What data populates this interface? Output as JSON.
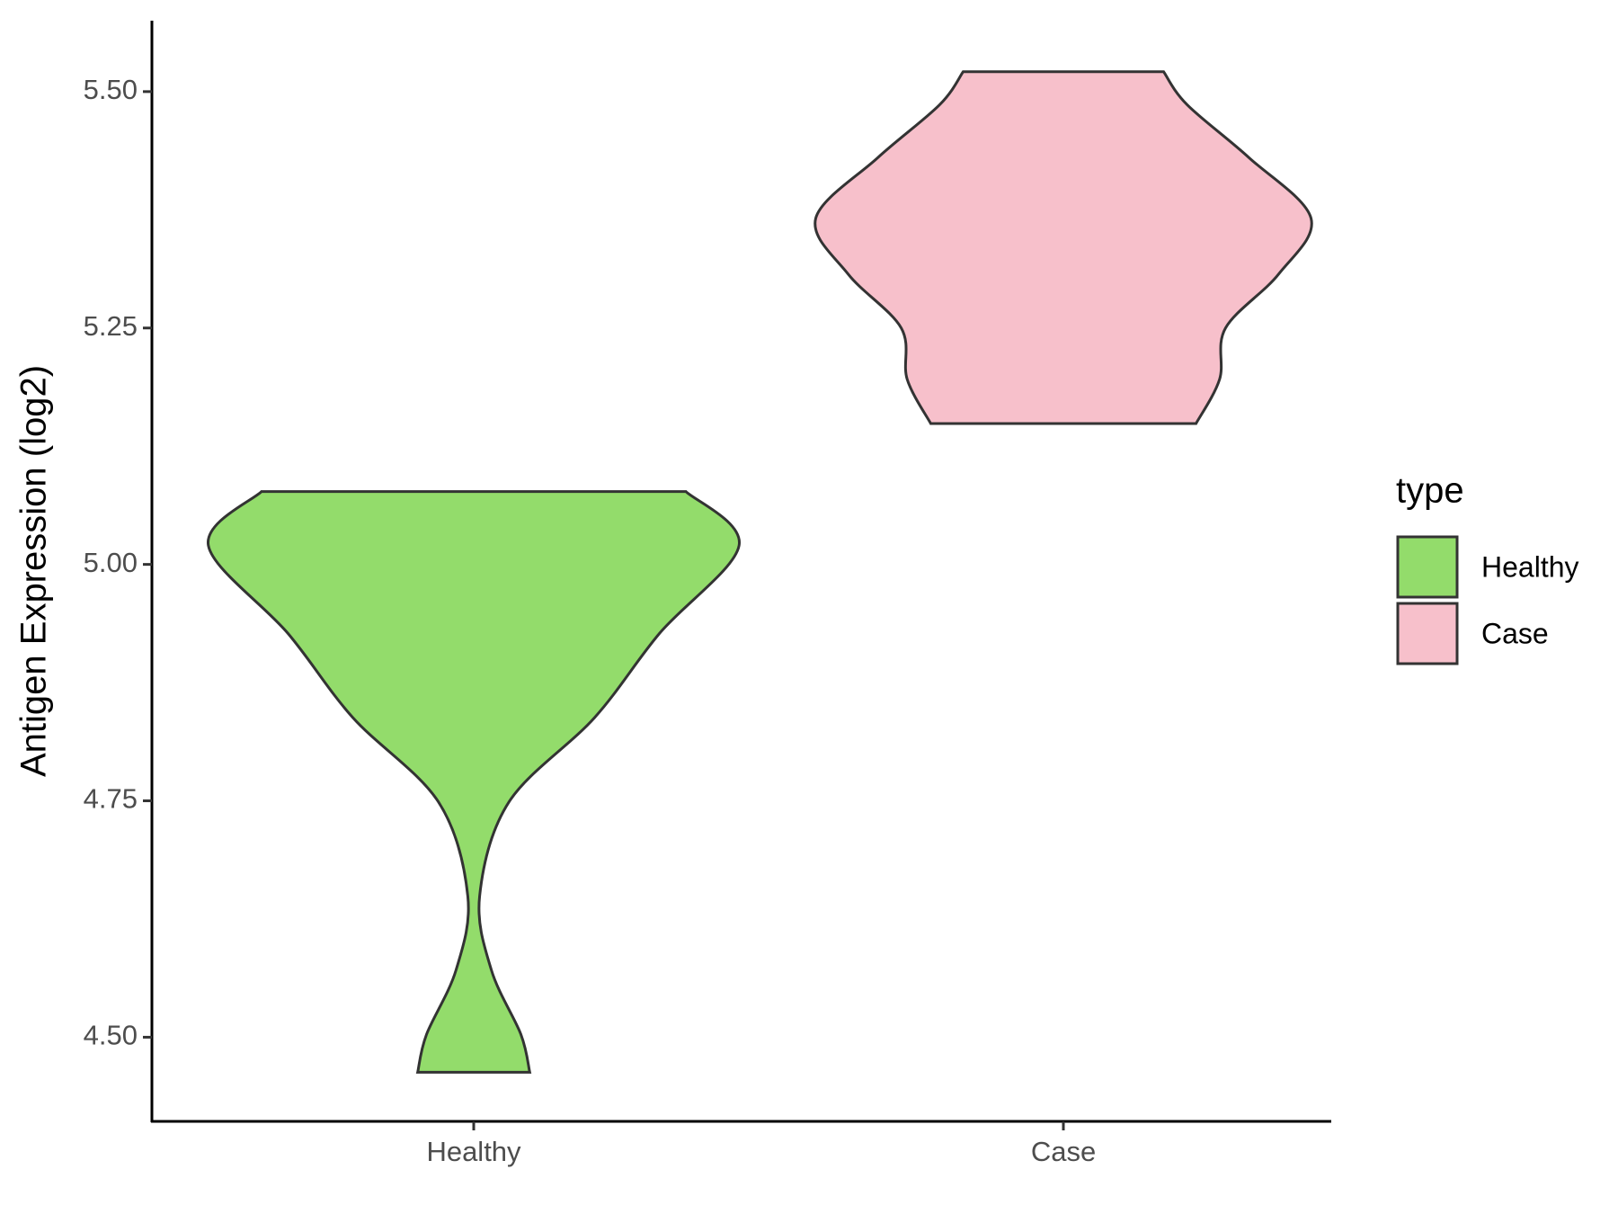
{
  "chart_data": {
    "type": "violin",
    "y_label": "Antigen Expression (log2)",
    "categories": [
      "Healthy",
      "Case"
    ],
    "series": [
      {
        "name": "Healthy",
        "color": "#93dc6b",
        "y": [
          4.463,
          4.503,
          4.571,
          4.649,
          4.749,
          4.838,
          4.927,
          5.02,
          5.077
        ],
        "widths": [
          0.19,
          0.16,
          0.06,
          0.02,
          0.12,
          0.41,
          0.63,
          0.9,
          0.72
        ]
      },
      {
        "name": "Case",
        "color": "#f7c0cb",
        "y": [
          5.149,
          5.196,
          5.25,
          5.307,
          5.366,
          5.43,
          5.486,
          5.521
        ],
        "widths": [
          0.45,
          0.53,
          0.55,
          0.73,
          0.84,
          0.63,
          0.42,
          0.34
        ]
      }
    ],
    "ylim": [
      4.411,
      5.575
    ],
    "yticks": [
      {
        "value": 4.5,
        "label": "4.50"
      },
      {
        "value": 4.75,
        "label": "4.75"
      },
      {
        "value": 5,
        "label": "5.00"
      },
      {
        "value": 5.25,
        "label": "5.25"
      },
      {
        "value": 5.5,
        "label": "5.50"
      }
    ],
    "legend_title": "type",
    "legend": "right"
  }
}
